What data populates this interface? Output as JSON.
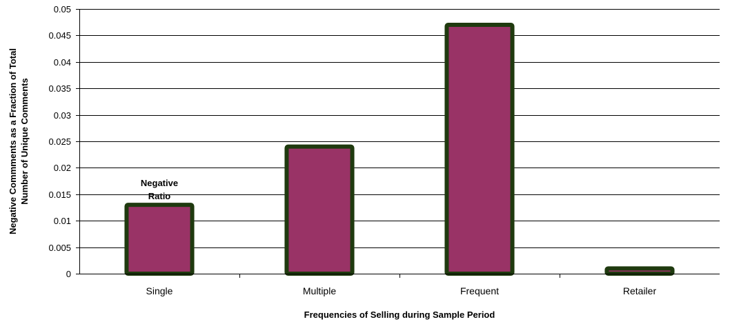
{
  "chart_data": {
    "type": "bar",
    "categories": [
      "Single",
      "Multiple",
      "Frequent",
      "Retailer"
    ],
    "series": [
      {
        "values": [
          0.013,
          0.024,
          0.047,
          0.001
        ]
      }
    ],
    "xlabel": "Frequencies of Selling during Sample Period",
    "ylabel": "Negative Commments as a Fraction of Total Number of Unique Comments",
    "ylabel_lines": [
      "Negative Commments as a Fraction of Total",
      "Number of Unique Comments"
    ],
    "ylim": [
      0,
      0.05
    ],
    "yticks": [
      "0",
      "0.005",
      "0.01",
      "0.015",
      "0.02",
      "0.025",
      "0.03",
      "0.035",
      "0.04",
      "0.045",
      "0.05"
    ],
    "ytick_values": [
      0,
      0.005,
      0.01,
      0.015,
      0.02,
      0.025,
      0.03,
      0.035,
      0.04,
      0.045,
      0.05
    ],
    "grid": true,
    "annotation": {
      "lines": [
        "Negative",
        "Ratio"
      ],
      "category": "Single"
    },
    "colors": {
      "bar_fill": "#993366",
      "bar_border": "#1f3a0f",
      "grid": "#000000"
    }
  }
}
